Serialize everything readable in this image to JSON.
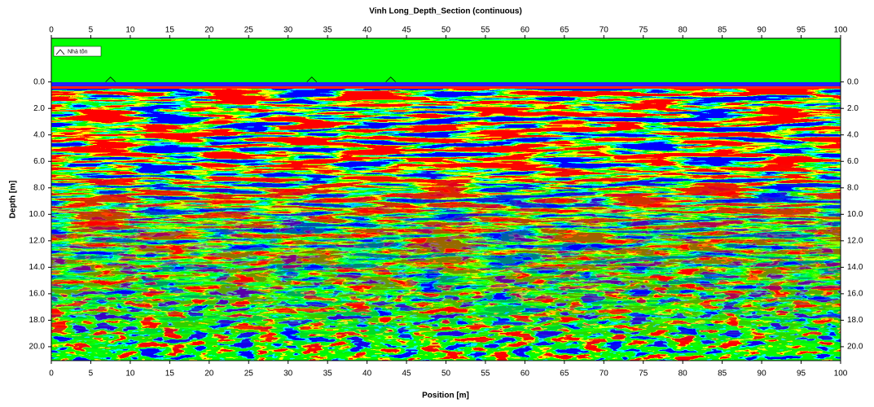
{
  "chart_data": {
    "type": "radargram",
    "title": "Vinh Long_Depth_Section (continuous)",
    "x_label": "Position [m]",
    "y_label": "Depth [m]",
    "xlim": [
      0,
      100
    ],
    "xticks": [
      0,
      5,
      10,
      15,
      20,
      25,
      30,
      35,
      40,
      45,
      50,
      55,
      60,
      65,
      70,
      75,
      80,
      85,
      90,
      95,
      100
    ],
    "ylim": [
      21.05,
      -3.3
    ],
    "yticks": [
      {
        "value": 0,
        "label": "0.0"
      },
      {
        "value": 2,
        "label": "2.0"
      },
      {
        "value": 4,
        "label": "4.0"
      },
      {
        "value": 6,
        "label": "6.0"
      },
      {
        "value": 8,
        "label": "8.0"
      },
      {
        "value": 10,
        "label": "10.0"
      },
      {
        "value": 12,
        "label": "12.0"
      },
      {
        "value": 14,
        "label": "14.0"
      },
      {
        "value": 16,
        "label": "16.0"
      },
      {
        "value": 18,
        "label": "18.0"
      },
      {
        "value": 20,
        "label": "20.0"
      }
    ],
    "markers": {
      "name": "Nhà tôn",
      "x": [
        7.5,
        33,
        43
      ]
    },
    "legend": "upper left"
  }
}
